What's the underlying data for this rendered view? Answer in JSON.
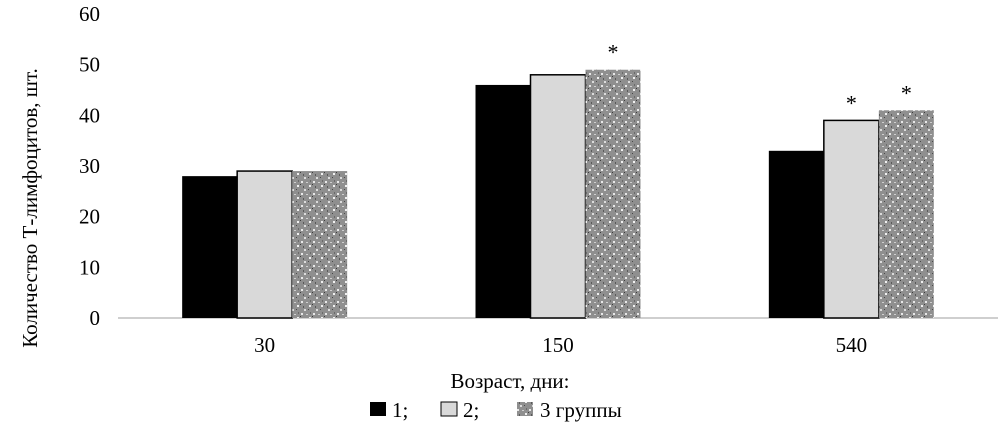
{
  "chart_data": {
    "type": "bar",
    "categories": [
      "30",
      "150",
      "540"
    ],
    "series": [
      {
        "name": "1;",
        "values": [
          28,
          46,
          33
        ],
        "color": "#000000",
        "pattern": "solid"
      },
      {
        "name": "2;",
        "values": [
          29,
          48,
          39
        ],
        "color": "#d9d9d9",
        "pattern": "light"
      },
      {
        "name": "3 группы",
        "values": [
          29,
          49,
          41
        ],
        "color": "#9a9a9a",
        "pattern": "speckled"
      }
    ],
    "annotations": [
      {
        "category": "150",
        "series": "3 группы",
        "text": "*"
      },
      {
        "category": "540",
        "series": "2;",
        "text": "*"
      },
      {
        "category": "540",
        "series": "3 группы",
        "text": "*"
      }
    ],
    "xlabel": "Возраст,  дни:",
    "ylabel": "Количество Т-лимфоцитов, шт.",
    "ylim": [
      0,
      60
    ],
    "yticks": [
      "0",
      "10",
      "20",
      "30",
      "40",
      "50",
      "60"
    ],
    "grid": false,
    "legend": "bottom"
  }
}
